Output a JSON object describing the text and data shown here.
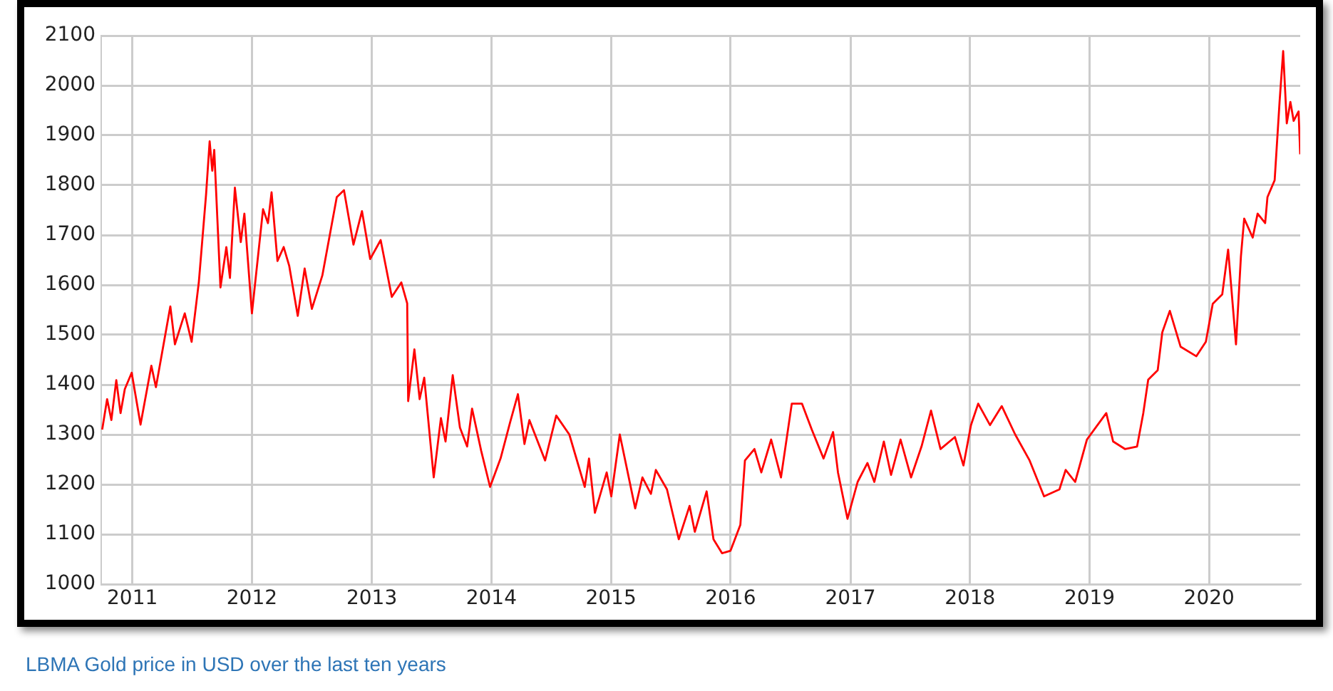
{
  "chart_data": {
    "type": "line",
    "x": [
      "2010-10-01",
      "2010-10-16",
      "2010-10-29",
      "2010-11-13",
      "2010-11-26",
      "2010-12-09",
      "2010-12-30",
      "2011-01-26",
      "2011-02-28",
      "2011-03-14",
      "2011-04-27",
      "2011-05-11",
      "2011-06-10",
      "2011-07-01",
      "2011-07-23",
      "2011-08-14",
      "2011-08-25",
      "2011-09-02",
      "2011-09-08",
      "2011-09-27",
      "2011-10-15",
      "2011-10-26",
      "2011-11-10",
      "2011-11-28",
      "2011-12-09",
      "2012-01-01",
      "2012-02-04",
      "2012-02-19",
      "2012-03-01",
      "2012-03-19",
      "2012-04-07",
      "2012-04-24",
      "2012-05-20",
      "2012-06-10",
      "2012-07-02",
      "2012-08-03",
      "2012-09-16",
      "2012-10-08",
      "2012-11-06",
      "2012-12-02",
      "2012-12-27",
      "2013-01-28",
      "2013-03-03",
      "2013-04-01",
      "2013-04-19",
      "2013-04-22",
      "2013-05-11",
      "2013-05-27",
      "2013-06-10",
      "2013-07-09",
      "2013-07-31",
      "2013-08-14",
      "2013-09-05",
      "2013-09-27",
      "2013-10-19",
      "2013-11-03",
      "2013-12-01",
      "2013-12-28",
      "2014-01-29",
      "2014-02-27",
      "2014-03-23",
      "2014-04-12",
      "2014-04-27",
      "2014-06-14",
      "2014-07-18",
      "2014-08-27",
      "2014-10-13",
      "2014-10-26",
      "2014-11-13",
      "2014-12-19",
      "2015-01-02",
      "2015-01-28",
      "2015-03-16",
      "2015-04-07",
      "2015-05-03",
      "2015-05-18",
      "2015-06-21",
      "2015-07-27",
      "2015-08-29",
      "2015-09-14",
      "2015-10-20",
      "2015-11-10",
      "2015-12-06",
      "2016-01-01",
      "2016-01-31",
      "2016-02-14",
      "2016-03-14",
      "2016-04-04",
      "2016-05-04",
      "2016-06-03",
      "2016-07-06",
      "2016-08-06",
      "2016-09-05",
      "2016-10-11",
      "2016-11-09",
      "2016-11-24",
      "2016-12-23",
      "2017-01-23",
      "2017-02-22",
      "2017-03-15",
      "2017-04-13",
      "2017-05-05",
      "2017-06-03",
      "2017-07-05",
      "2017-08-06",
      "2017-09-04",
      "2017-10-03",
      "2017-11-16",
      "2017-12-12",
      "2018-01-04",
      "2018-01-26",
      "2018-03-03",
      "2018-04-08",
      "2018-05-19",
      "2018-07-02",
      "2018-08-15",
      "2018-10-01",
      "2018-10-20",
      "2018-11-18",
      "2018-12-24",
      "2019-02-21",
      "2019-03-14",
      "2019-04-19",
      "2019-05-26",
      "2019-06-14",
      "2019-06-29",
      "2019-07-28",
      "2019-08-11",
      "2019-09-03",
      "2019-10-06",
      "2019-11-23",
      "2019-12-22",
      "2020-01-12",
      "2020-02-10",
      "2020-02-28",
      "2020-03-23",
      "2020-04-07",
      "2020-04-17",
      "2020-05-13",
      "2020-05-28",
      "2020-06-20",
      "2020-06-27",
      "2020-07-19",
      "2020-08-03",
      "2020-08-14",
      "2020-08-25",
      "2020-09-05",
      "2020-09-15",
      "2020-09-30",
      "2020-10-05"
    ],
    "series": [
      {
        "color": "#ff0000",
        "values": [
          1310,
          1371,
          1329,
          1409,
          1343,
          1391,
          1424,
          1320,
          1438,
          1395,
          1557,
          1481,
          1543,
          1486,
          1606,
          1781,
          1888,
          1829,
          1871,
          1595,
          1676,
          1614,
          1795,
          1686,
          1743,
          1543,
          1752,
          1724,
          1786,
          1648,
          1676,
          1638,
          1538,
          1633,
          1552,
          1619,
          1776,
          1790,
          1681,
          1748,
          1652,
          1690,
          1576,
          1605,
          1563,
          1367,
          1471,
          1371,
          1414,
          1214,
          1333,
          1286,
          1419,
          1314,
          1276,
          1352,
          1267,
          1195,
          1252,
          1324,
          1381,
          1281,
          1329,
          1248,
          1338,
          1300,
          1195,
          1252,
          1143,
          1224,
          1176,
          1300,
          1152,
          1214,
          1181,
          1229,
          1190,
          1090,
          1157,
          1105,
          1186,
          1090,
          1062,
          1067,
          1119,
          1248,
          1271,
          1224,
          1290,
          1214,
          1362,
          1362,
          1310,
          1252,
          1305,
          1224,
          1131,
          1205,
          1243,
          1205,
          1286,
          1219,
          1290,
          1214,
          1276,
          1348,
          1271,
          1295,
          1238,
          1319,
          1362,
          1319,
          1357,
          1300,
          1248,
          1176,
          1190,
          1229,
          1205,
          1290,
          1343,
          1286,
          1271,
          1276,
          1343,
          1410,
          1429,
          1505,
          1548,
          1476,
          1457,
          1486,
          1562,
          1581,
          1671,
          1481,
          1657,
          1733,
          1695,
          1743,
          1724,
          1776,
          1810,
          1967,
          2069,
          1924,
          1967,
          1929,
          1948,
          1862
        ]
      }
    ],
    "xlim": [
      "2010-09-28",
      "2020-10-05"
    ],
    "xticks": [
      "2011",
      "2012",
      "2013",
      "2014",
      "2015",
      "2016",
      "2017",
      "2018",
      "2019",
      "2020"
    ],
    "ylim": [
      1000,
      2100
    ],
    "yticks": [
      1000,
      1100,
      1200,
      1300,
      1400,
      1500,
      1600,
      1700,
      1800,
      1900,
      2000,
      2100
    ],
    "grid": true,
    "legend": false,
    "marker": "none",
    "line_style": "solid",
    "annotations": [
      "LBMA Gold price in USD over the last ten years"
    ]
  }
}
